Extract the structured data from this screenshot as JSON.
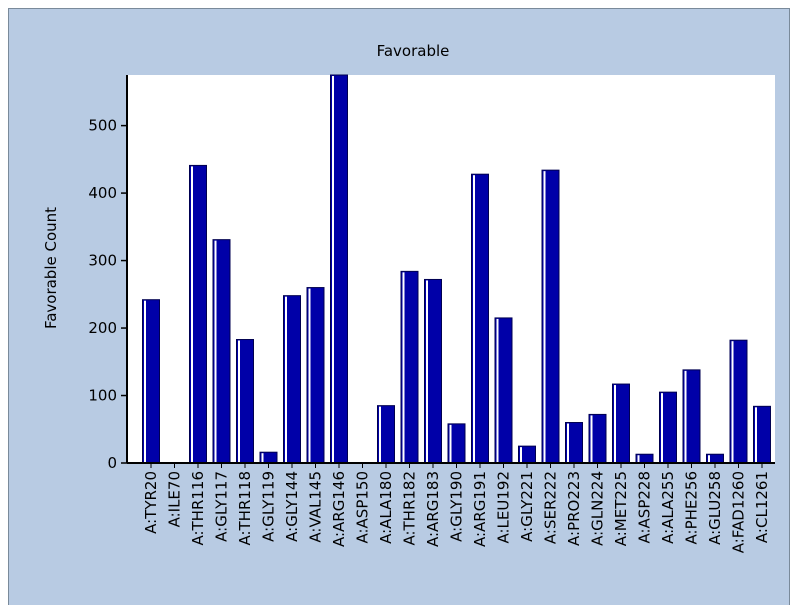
{
  "chart_data": {
    "type": "bar",
    "title": "Favorable",
    "y_label": "Favorable Count",
    "categories": [
      "A:TYR20",
      "A:ILE70",
      "A:THR116",
      "A:GLY117",
      "A:THR118",
      "A:GLY119",
      "A:GLY144",
      "A:VAL145",
      "A:ARG146",
      "A:ASP150",
      "A:ALA180",
      "A:THR182",
      "A:ARG183",
      "A:GLY190",
      "A:ARG191",
      "A:LEU192",
      "A:GLY221",
      "A:SER222",
      "A:PRO223",
      "A:GLN224",
      "A:MET225",
      "A:ASP228",
      "A:ALA255",
      "A:PHE256",
      "A:GLU258",
      "A:FAD1260",
      "A:CL1261"
    ],
    "values": [
      242,
      0,
      441,
      331,
      183,
      16,
      248,
      260,
      575,
      0,
      85,
      284,
      272,
      58,
      428,
      215,
      25,
      434,
      60,
      72,
      117,
      13,
      105,
      138,
      13,
      182,
      84
    ],
    "color": "#0000a8",
    "ylim": [
      0,
      575
    ],
    "yticks": [
      0,
      100,
      200,
      300,
      400,
      500
    ]
  }
}
